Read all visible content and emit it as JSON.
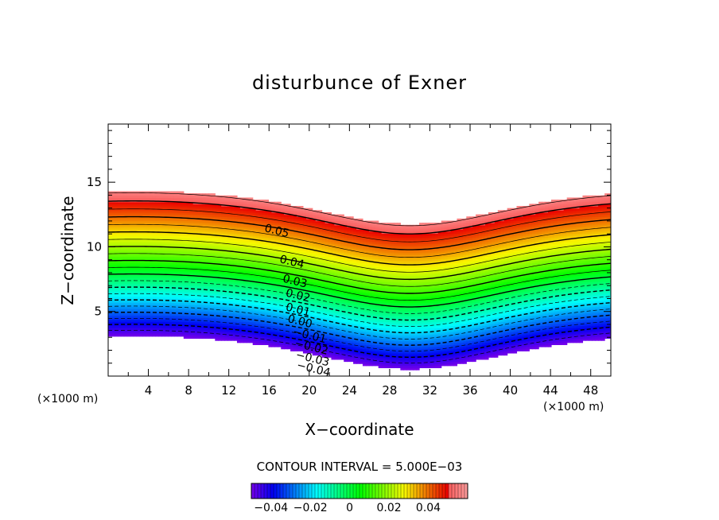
{
  "chart_data": {
    "type": "contour",
    "title": "disturbunce of Exner",
    "xlabel": "X−coordinate",
    "ylabel": "Z−coordinate",
    "x_unit": "(×1000 m)",
    "y_unit": "(×1000 m)",
    "xlim": [
      0,
      50
    ],
    "ylim": [
      0,
      19.5
    ],
    "x_ticks": [
      4,
      8,
      12,
      16,
      20,
      24,
      28,
      32,
      36,
      40,
      44,
      48
    ],
    "x_tick_labels": [
      "4",
      "8",
      "12",
      "16",
      "20",
      "24",
      "28",
      "32",
      "36",
      "40",
      "44",
      "48"
    ],
    "y_ticks": [
      5,
      10,
      15
    ],
    "y_tick_labels": [
      "5",
      "10",
      "15"
    ],
    "contour_interval_text": "CONTOUR INTERVAL = 5.000E−03",
    "contour_interval": 0.005,
    "value_range": [
      -0.05,
      0.06
    ],
    "contour_labels": [
      {
        "text": "0.05",
        "x": 15.5,
        "z": 11.2
      },
      {
        "text": "0.04",
        "x": 17.0,
        "z": 8.8
      },
      {
        "text": "0.03",
        "x": 17.3,
        "z": 7.3
      },
      {
        "text": "0.02",
        "x": 17.6,
        "z": 6.2
      },
      {
        "text": "0.01",
        "x": 17.6,
        "z": 5.1
      },
      {
        "text": "0.00",
        "x": 17.8,
        "z": 4.2
      },
      {
        "text": "−0.01",
        "x": 18.3,
        "z": 3.2
      },
      {
        "text": "−0.02",
        "x": 18.5,
        "z": 2.3
      },
      {
        "text": "−0.03",
        "x": 18.6,
        "z": 1.4
      },
      {
        "text": "−0.04",
        "x": 18.7,
        "z": 0.6
      }
    ],
    "colorbar": {
      "ticks": [
        -0.04,
        -0.02,
        0,
        0.02,
        0.04
      ],
      "tick_labels": [
        "−0.04",
        "−0.02",
        "0",
        "0.02",
        "0.04"
      ],
      "range": [
        -0.05,
        0.06
      ]
    },
    "legend": "none",
    "grid": false
  }
}
